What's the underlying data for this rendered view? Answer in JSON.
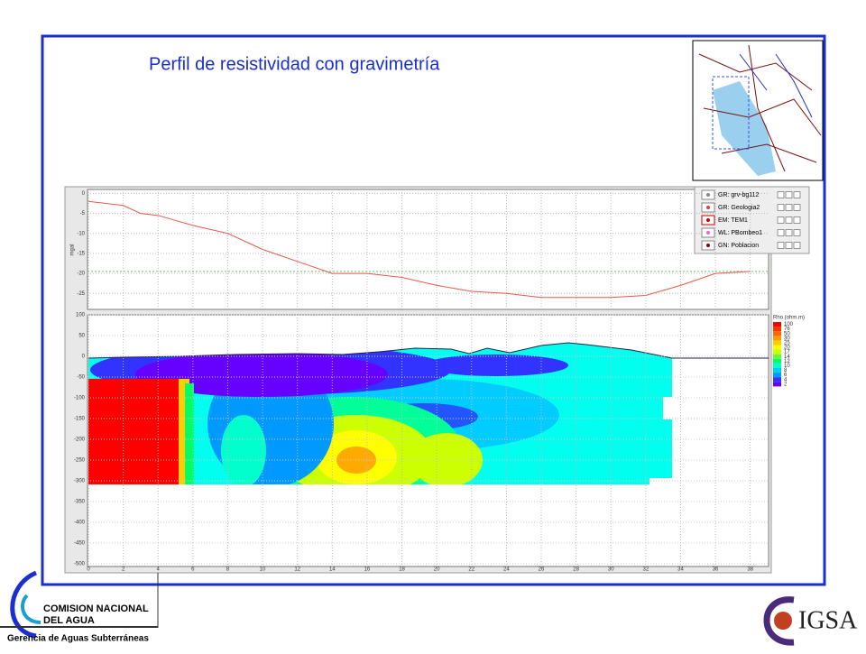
{
  "title": "Perfil de resistividad con gravimetría",
  "gravity_chart": {
    "type": "line",
    "y_label": "mgal",
    "color": "#e8584a",
    "xlim": [
      0,
      39
    ],
    "ylim": [
      -29,
      1
    ],
    "yticks": [
      0,
      -5,
      -10,
      -15,
      -20,
      -25
    ],
    "x": [
      0,
      2,
      3,
      4,
      6,
      8,
      10,
      12,
      14,
      16,
      18,
      20,
      22,
      24,
      26,
      28,
      30,
      32,
      34,
      36,
      38
    ],
    "values": [
      -2,
      -3,
      -5,
      -5.5,
      -8,
      -10,
      -14,
      -17,
      -20,
      -20,
      -21,
      -23,
      -24.5,
      -25,
      -26,
      -26,
      -26,
      -25.5,
      -23,
      -20,
      -19.5
    ]
  },
  "resistivity_chart": {
    "type": "section",
    "xlim": [
      0,
      39
    ],
    "ylim": [
      -500,
      100
    ],
    "xticks": [
      0,
      2,
      4,
      6,
      8,
      10,
      12,
      14,
      16,
      18,
      20,
      22,
      24,
      26,
      28,
      30,
      32,
      34,
      36,
      38
    ],
    "yticks": [
      100,
      50,
      0,
      -50,
      -100,
      -150,
      -200,
      -250,
      -300,
      -350,
      -400,
      -450,
      -500
    ],
    "scale_title": "Rho (ohm.m)",
    "scale_values": [
      100,
      76,
      50,
      30,
      25,
      20,
      17,
      14,
      12,
      10,
      8,
      6,
      4,
      2
    ],
    "scale_colors": [
      "#ff0000",
      "#ff3300",
      "#ff6600",
      "#ff9900",
      "#ffcc00",
      "#ffff00",
      "#ccff00",
      "#66ff33",
      "#00ff66",
      "#00ffcc",
      "#00ccff",
      "#0099ff",
      "#3333ff",
      "#6600ff"
    ]
  },
  "legend": [
    "GR: grv-bg112",
    "GR: Geologia2",
    "EM: TEM1",
    "WL: PBombeo1",
    "GN: Poblacion"
  ],
  "footer": {
    "org_line1": "COMISION NACIONAL",
    "org_line2": "DEL AGUA",
    "department": "Gerencia de Aguas Subterráneas",
    "logo": "IGSA"
  }
}
